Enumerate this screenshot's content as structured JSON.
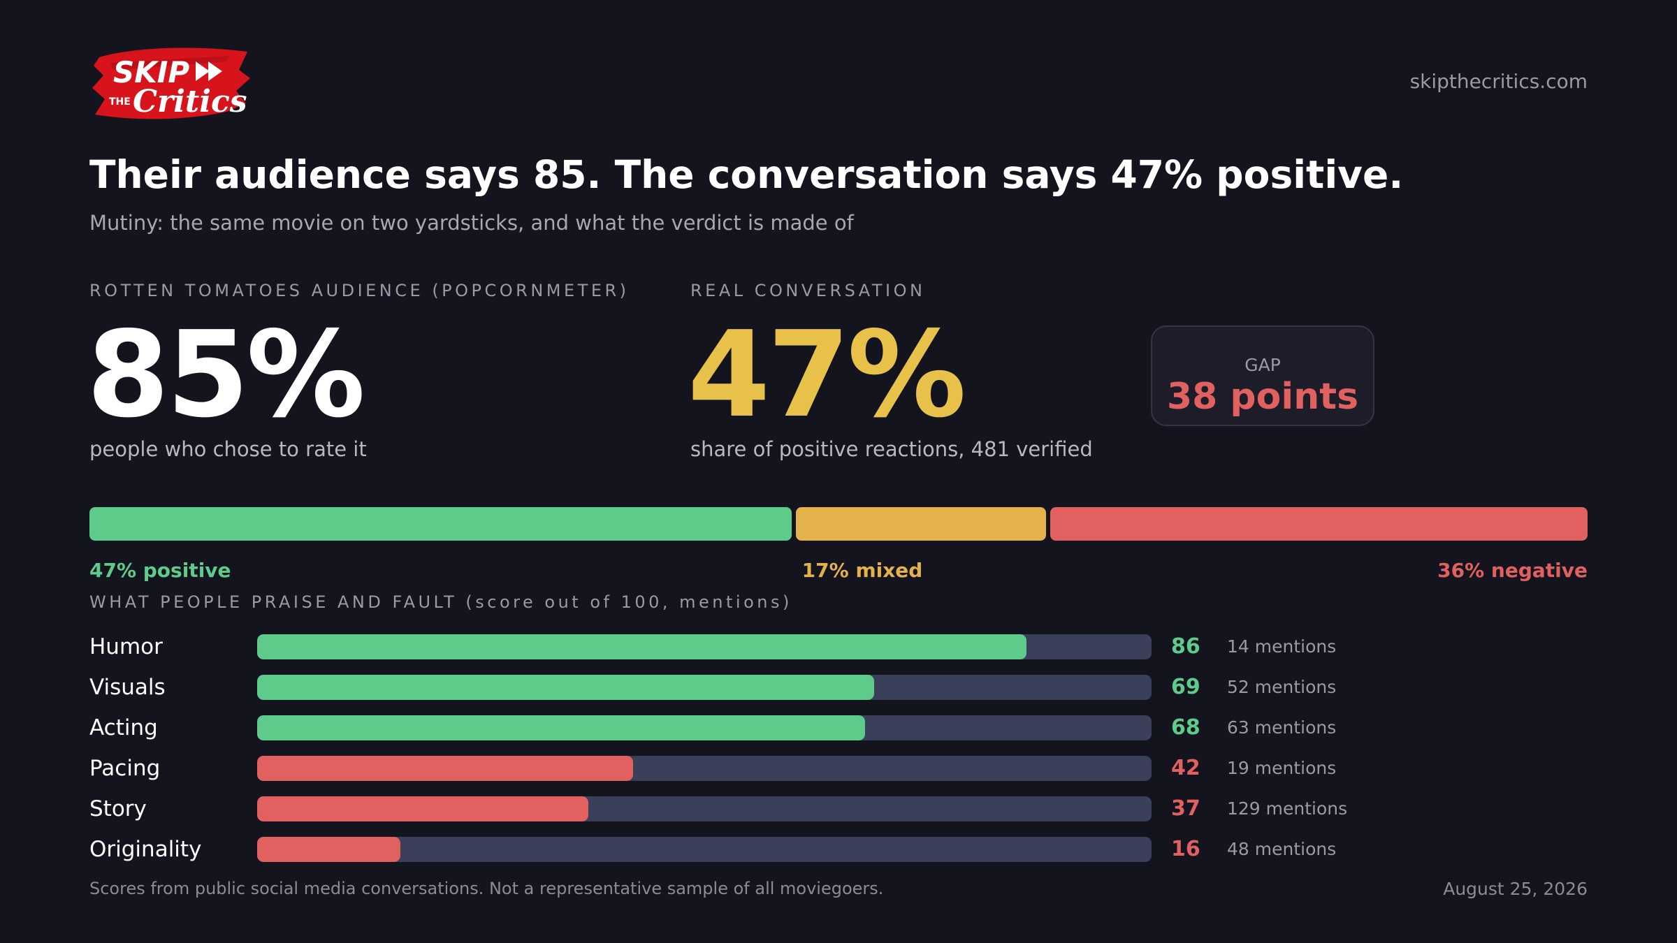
{
  "brand": {
    "logo_top": "SKIP",
    "logo_the": "THE",
    "logo_bottom": "Critics",
    "site": "skipthecritics.com"
  },
  "header": {
    "title": "Their audience says 85. The conversation says 47% positive.",
    "subtitle": "Mutiny: the same movie on two yardsticks, and what the verdict is made of"
  },
  "rt": {
    "kicker": "ROTTEN TOMATOES AUDIENCE (POPCORNMETER)",
    "value": "85%",
    "caption": "people who chose to rate it"
  },
  "conversation": {
    "kicker": "REAL CONVERSATION",
    "value": "47%",
    "caption": "share of positive reactions, 481 verified"
  },
  "gap": {
    "label": "GAP",
    "value": "38 points"
  },
  "attributes_kicker": "WHAT PEOPLE PRAISE AND FAULT (score out of 100, mentions)",
  "chart_data": [
    {
      "type": "bar",
      "orientation": "horizontal-stacked",
      "categories": [
        "positive",
        "mixed",
        "negative"
      ],
      "values": [
        47,
        17,
        36
      ],
      "labels": [
        "47% positive",
        "17% mixed",
        "36% negative"
      ],
      "colors": [
        "#5fcb8a",
        "#e3b24a",
        "#e0615f"
      ],
      "xlim": [
        0,
        100
      ]
    },
    {
      "type": "bar",
      "orientation": "horizontal",
      "categories": [
        "Humor",
        "Visuals",
        "Acting",
        "Pacing",
        "Story",
        "Originality"
      ],
      "values": [
        86,
        69,
        68,
        42,
        37,
        16
      ],
      "mentions": [
        "14 mentions",
        "52 mentions",
        "63 mentions",
        "19 mentions",
        "129 mentions",
        "48 mentions"
      ],
      "polarity": [
        "positive",
        "positive",
        "positive",
        "negative",
        "negative",
        "negative"
      ],
      "xlim": [
        0,
        100
      ],
      "colors": {
        "positive": "#5fcb8a",
        "negative": "#e0615f",
        "track": "#3a3f5a"
      }
    }
  ],
  "footer": {
    "note": "Scores from public social media conversations. Not a representative sample of all moviegoers.",
    "date": "August 25, 2026"
  }
}
